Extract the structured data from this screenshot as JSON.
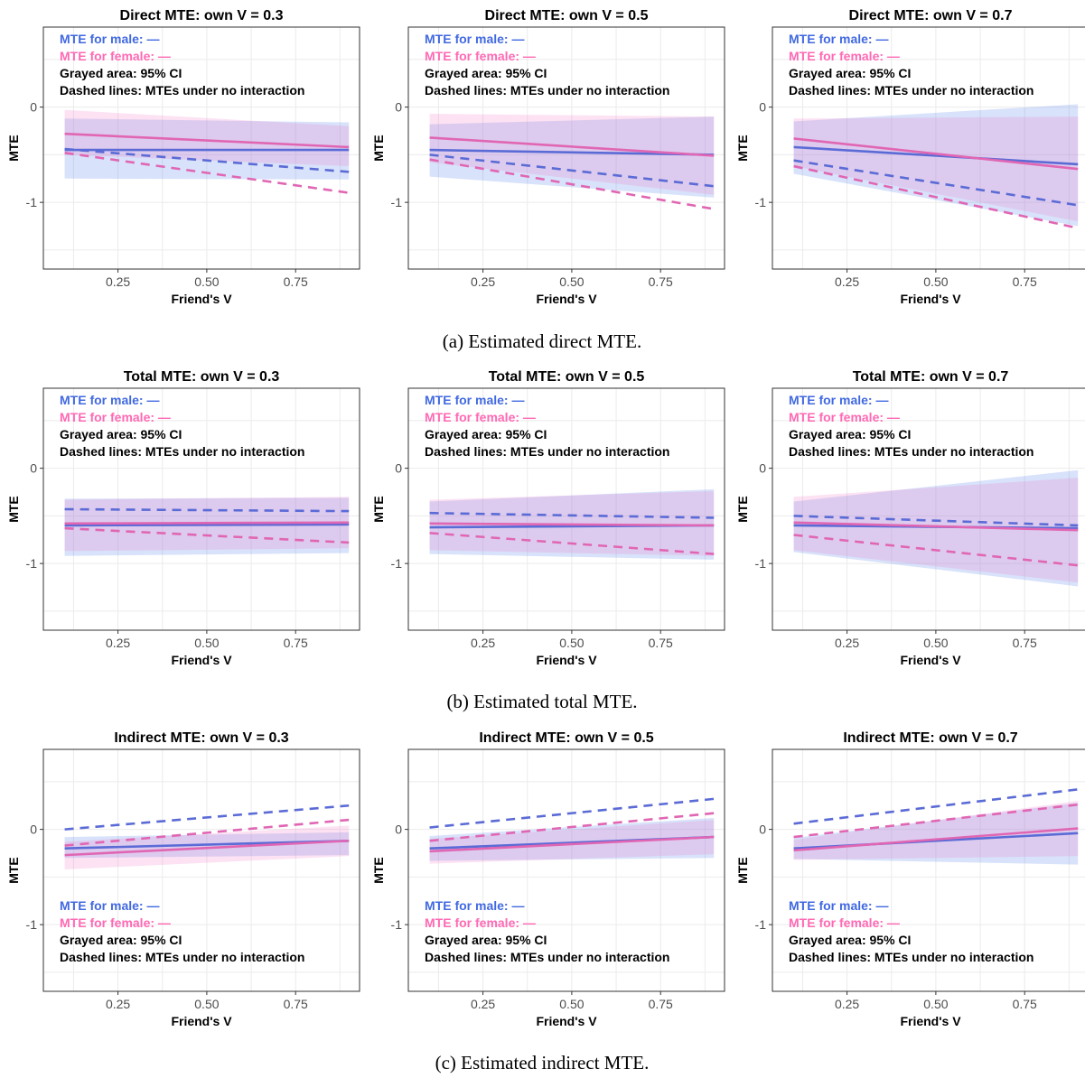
{
  "colors": {
    "male": "#5b6bd6",
    "female": "#e066b3",
    "male_legend": "#4169e1",
    "female_legend": "#ff69b4",
    "male_ci": "#4f7ce6",
    "female_ci": "#f07ac8",
    "grid": "#ebebeb",
    "border": "#333333"
  },
  "shared_axes": {
    "xlabel": "Friend's V",
    "ylabel": "MTE",
    "xticks": [
      "0.25",
      "0.50",
      "0.75"
    ],
    "yticks": [
      "-1",
      "0"
    ]
  },
  "legend": {
    "male": "MTE for male: —",
    "female": "MTE for female: —",
    "ci": "Grayed area: 95% CI",
    "dashed": "Dashed lines: MTEs under no interaction"
  },
  "captions": [
    "(a) Estimated direct MTE.",
    "(b) Estimated total MTE.",
    "(c) Estimated indirect MTE."
  ],
  "chart_data": [
    {
      "type": "line",
      "title": "Direct MTE: own V = 0.3",
      "xlabel": "Friend's V",
      "ylabel": "MTE",
      "xlim": [
        0.04,
        0.93
      ],
      "ylim": [
        -1.7,
        0.84
      ],
      "legend_position": "top-left",
      "grid": true,
      "x": [
        0.1,
        0.9
      ],
      "series": [
        {
          "name": "MTE for male",
          "style": "solid",
          "values": [
            -0.45,
            -0.45
          ],
          "ci_lower": [
            -0.75,
            -0.76
          ],
          "ci_upper": [
            -0.12,
            -0.16
          ]
        },
        {
          "name": "MTE for female",
          "style": "solid",
          "values": [
            -0.28,
            -0.42
          ],
          "ci_lower": [
            -0.5,
            -0.62
          ],
          "ci_upper": [
            -0.03,
            -0.2
          ]
        },
        {
          "style": "dashed",
          "values": [
            -0.44,
            -0.68
          ]
        },
        {
          "style": "dashed",
          "values": [
            -0.48,
            -0.9
          ]
        }
      ]
    },
    {
      "type": "line",
      "title": "Direct MTE: own V = 0.5",
      "xlabel": "Friend's V",
      "ylabel": "MTE",
      "xlim": [
        0.04,
        0.93
      ],
      "ylim": [
        -1.7,
        0.84
      ],
      "legend_position": "top-left",
      "grid": true,
      "x": [
        0.1,
        0.9
      ],
      "series": [
        {
          "name": "MTE for male",
          "style": "solid",
          "values": [
            -0.45,
            -0.5
          ],
          "ci_lower": [
            -0.73,
            -0.95
          ],
          "ci_upper": [
            -0.18,
            -0.1
          ]
        },
        {
          "name": "MTE for female",
          "style": "solid",
          "values": [
            -0.32,
            -0.51
          ],
          "ci_lower": [
            -0.58,
            -0.92
          ],
          "ci_upper": [
            -0.07,
            -0.1
          ]
        },
        {
          "style": "dashed",
          "values": [
            -0.5,
            -0.83
          ]
        },
        {
          "style": "dashed",
          "values": [
            -0.55,
            -1.07
          ]
        }
      ]
    },
    {
      "type": "line",
      "title": "Direct MTE: own V = 0.7",
      "xlabel": "Friend's V",
      "ylabel": "MTE",
      "xlim": [
        0.04,
        0.93
      ],
      "ylim": [
        -1.7,
        0.84
      ],
      "legend_position": "top-left",
      "grid": true,
      "x": [
        0.1,
        0.9
      ],
      "series": [
        {
          "name": "MTE for male",
          "style": "solid",
          "values": [
            -0.42,
            -0.6
          ],
          "ci_lower": [
            -0.7,
            -1.25
          ],
          "ci_upper": [
            -0.15,
            0.03
          ]
        },
        {
          "name": "MTE for female",
          "style": "solid",
          "values": [
            -0.33,
            -0.65
          ],
          "ci_lower": [
            -0.62,
            -1.2
          ],
          "ci_upper": [
            -0.12,
            -0.1
          ]
        },
        {
          "style": "dashed",
          "values": [
            -0.56,
            -1.03
          ]
        },
        {
          "style": "dashed",
          "values": [
            -0.62,
            -1.27
          ]
        }
      ]
    },
    {
      "type": "line",
      "title": "Total MTE: own V = 0.3",
      "xlabel": "Friend's V",
      "ylabel": "MTE",
      "xlim": [
        0.04,
        0.93
      ],
      "ylim": [
        -1.7,
        0.84
      ],
      "legend_position": "top-left",
      "grid": true,
      "x": [
        0.1,
        0.9
      ],
      "series": [
        {
          "name": "MTE for male",
          "style": "solid",
          "values": [
            -0.6,
            -0.59
          ],
          "ci_lower": [
            -0.92,
            -0.89
          ],
          "ci_upper": [
            -0.32,
            -0.31
          ]
        },
        {
          "name": "MTE for female",
          "style": "solid",
          "values": [
            -0.58,
            -0.57
          ],
          "ci_lower": [
            -0.87,
            -0.84
          ],
          "ci_upper": [
            -0.33,
            -0.3
          ]
        },
        {
          "style": "dashed",
          "values": [
            -0.43,
            -0.45
          ]
        },
        {
          "style": "dashed",
          "values": [
            -0.63,
            -0.78
          ]
        }
      ]
    },
    {
      "type": "line",
      "title": "Total MTE: own V = 0.5",
      "xlabel": "Friend's V",
      "ylabel": "MTE",
      "xlim": [
        0.04,
        0.93
      ],
      "ylim": [
        -1.7,
        0.84
      ],
      "legend_position": "top-left",
      "grid": true,
      "x": [
        0.1,
        0.9
      ],
      "series": [
        {
          "name": "MTE for male",
          "style": "solid",
          "values": [
            -0.62,
            -0.6
          ],
          "ci_lower": [
            -0.9,
            -0.96
          ],
          "ci_upper": [
            -0.35,
            -0.22
          ]
        },
        {
          "name": "MTE for female",
          "style": "solid",
          "values": [
            -0.58,
            -0.6
          ],
          "ci_lower": [
            -0.86,
            -0.92
          ],
          "ci_upper": [
            -0.33,
            -0.24
          ]
        },
        {
          "style": "dashed",
          "values": [
            -0.47,
            -0.52
          ]
        },
        {
          "style": "dashed",
          "values": [
            -0.68,
            -0.9
          ]
        }
      ]
    },
    {
      "type": "line",
      "title": "Total MTE: own V = 0.7",
      "xlabel": "Friend's V",
      "ylabel": "MTE",
      "xlim": [
        0.04,
        0.93
      ],
      "ylim": [
        -1.7,
        0.84
      ],
      "legend_position": "top-left",
      "grid": true,
      "x": [
        0.1,
        0.9
      ],
      "series": [
        {
          "name": "MTE for male",
          "style": "solid",
          "values": [
            -0.6,
            -0.63
          ],
          "ci_lower": [
            -0.88,
            -1.24
          ],
          "ci_upper": [
            -0.35,
            -0.02
          ]
        },
        {
          "name": "MTE for female",
          "style": "solid",
          "values": [
            -0.57,
            -0.65
          ],
          "ci_lower": [
            -0.86,
            -1.2
          ],
          "ci_upper": [
            -0.3,
            -0.1
          ]
        },
        {
          "style": "dashed",
          "values": [
            -0.5,
            -0.6
          ]
        },
        {
          "style": "dashed",
          "values": [
            -0.7,
            -1.02
          ]
        }
      ]
    },
    {
      "type": "line",
      "title": "Indirect MTE: own V = 0.3",
      "xlabel": "Friend's V",
      "ylabel": "MTE",
      "xlim": [
        0.04,
        0.93
      ],
      "ylim": [
        -1.7,
        0.84
      ],
      "legend_position": "bottom-left",
      "grid": true,
      "x": [
        0.1,
        0.9
      ],
      "series": [
        {
          "name": "MTE for male",
          "style": "solid",
          "values": [
            -0.2,
            -0.12
          ],
          "ci_lower": [
            -0.3,
            -0.27
          ],
          "ci_upper": [
            -0.08,
            -0.03
          ]
        },
        {
          "name": "MTE for female",
          "style": "solid",
          "values": [
            -0.27,
            -0.12
          ],
          "ci_lower": [
            -0.42,
            -0.28
          ],
          "ci_upper": [
            -0.13,
            0.04
          ]
        },
        {
          "style": "dashed",
          "values": [
            0,
            0.25
          ]
        },
        {
          "style": "dashed",
          "values": [
            -0.17,
            0.1
          ]
        }
      ]
    },
    {
      "type": "line",
      "title": "Indirect MTE: own V = 0.5",
      "xlabel": "Friend's V",
      "ylabel": "MTE",
      "xlim": [
        0.04,
        0.93
      ],
      "ylim": [
        -1.7,
        0.84
      ],
      "legend_position": "bottom-left",
      "grid": true,
      "x": [
        0.1,
        0.9
      ],
      "series": [
        {
          "name": "MTE for male",
          "style": "solid",
          "values": [
            -0.2,
            -0.08
          ],
          "ci_lower": [
            -0.33,
            -0.3
          ],
          "ci_upper": [
            -0.07,
            0.12
          ]
        },
        {
          "name": "MTE for female",
          "style": "solid",
          "values": [
            -0.23,
            -0.08
          ],
          "ci_lower": [
            -0.36,
            -0.26
          ],
          "ci_upper": [
            -0.1,
            0.1
          ]
        },
        {
          "style": "dashed",
          "values": [
            0.02,
            0.32
          ]
        },
        {
          "style": "dashed",
          "values": [
            -0.12,
            0.17
          ]
        }
      ]
    },
    {
      "type": "line",
      "title": "Indirect MTE: own V = 0.7",
      "xlabel": "Friend's V",
      "ylabel": "MTE",
      "xlim": [
        0.04,
        0.93
      ],
      "ylim": [
        -1.7,
        0.84
      ],
      "legend_position": "bottom-left",
      "grid": true,
      "x": [
        0.1,
        0.9
      ],
      "series": [
        {
          "name": "MTE for male",
          "style": "solid",
          "values": [
            -0.2,
            -0.04
          ],
          "ci_lower": [
            -0.31,
            -0.37
          ],
          "ci_upper": [
            -0.09,
            0.28
          ]
        },
        {
          "name": "MTE for female",
          "style": "solid",
          "values": [
            -0.22,
            0.01
          ],
          "ci_lower": [
            -0.32,
            -0.28
          ],
          "ci_upper": [
            -0.11,
            0.3
          ]
        },
        {
          "style": "dashed",
          "values": [
            0.06,
            0.42
          ]
        },
        {
          "style": "dashed",
          "values": [
            -0.08,
            0.26
          ]
        }
      ]
    }
  ]
}
